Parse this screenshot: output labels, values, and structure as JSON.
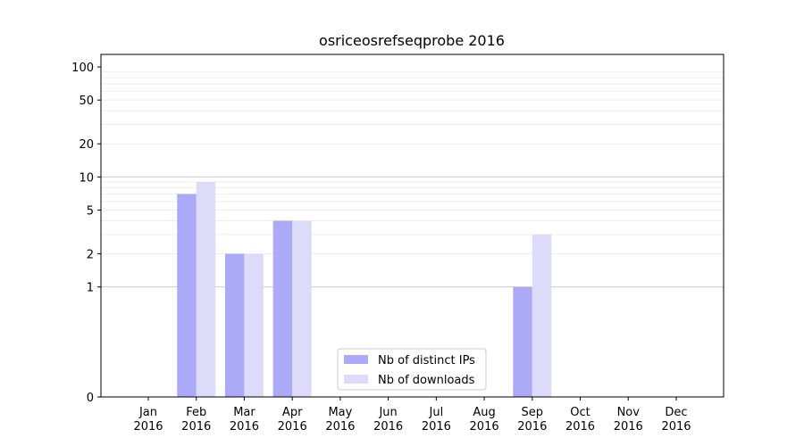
{
  "chart_data": {
    "type": "bar",
    "title": "osriceosrefseqprobe 2016",
    "xlabel": "",
    "ylabel": "",
    "y_scale": "symlog",
    "ylim": [
      0,
      130
    ],
    "grid": "horizontal",
    "legend_position": "bottom-center",
    "categories": [
      {
        "month": "Jan",
        "year": "2016"
      },
      {
        "month": "Feb",
        "year": "2016"
      },
      {
        "month": "Mar",
        "year": "2016"
      },
      {
        "month": "Apr",
        "year": "2016"
      },
      {
        "month": "May",
        "year": "2016"
      },
      {
        "month": "Jun",
        "year": "2016"
      },
      {
        "month": "Jul",
        "year": "2016"
      },
      {
        "month": "Aug",
        "year": "2016"
      },
      {
        "month": "Sep",
        "year": "2016"
      },
      {
        "month": "Oct",
        "year": "2016"
      },
      {
        "month": "Nov",
        "year": "2016"
      },
      {
        "month": "Dec",
        "year": "2016"
      }
    ],
    "y_ticks": [
      {
        "value": 0,
        "label": "0"
      },
      {
        "value": 1,
        "label": "1"
      },
      {
        "value": 2,
        "label": "2"
      },
      {
        "value": 5,
        "label": "5"
      },
      {
        "value": 10,
        "label": "10"
      },
      {
        "value": 20,
        "label": "20"
      },
      {
        "value": 50,
        "label": "50"
      },
      {
        "value": 100,
        "label": "100"
      }
    ],
    "series": [
      {
        "name": "Nb of distinct IPs",
        "color": "#aaaaf8",
        "values": [
          0,
          7,
          2,
          4,
          0,
          0,
          0,
          0,
          1,
          0,
          0,
          0
        ]
      },
      {
        "name": "Nb of downloads",
        "color": "#dcdcfa",
        "values": [
          0,
          9,
          2,
          4,
          0,
          0,
          0,
          0,
          3,
          0,
          0,
          0
        ]
      }
    ]
  }
}
